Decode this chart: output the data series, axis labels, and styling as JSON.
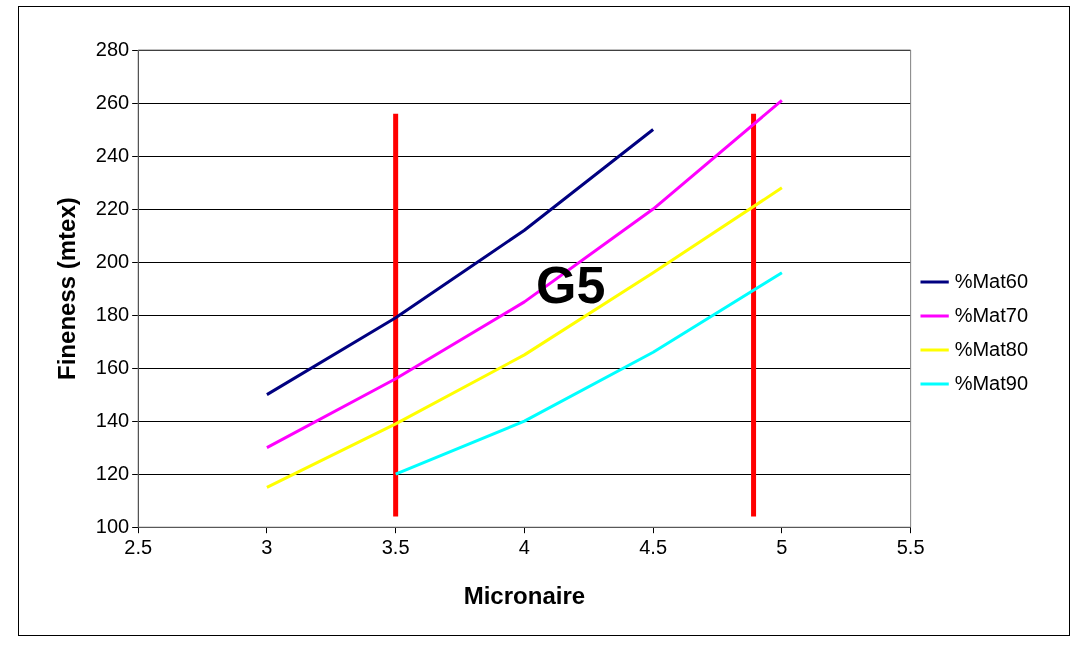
{
  "chart_data": {
    "type": "line",
    "xlabel": "Micronaire",
    "ylabel": "Fineness (mtex)",
    "xlim": [
      2.5,
      5.5
    ],
    "xticks": [
      2.5,
      3,
      3.5,
      4,
      4.5,
      5,
      5.5
    ],
    "ylim": [
      100,
      280
    ],
    "yticks": [
      100,
      120,
      140,
      160,
      180,
      200,
      220,
      240,
      260,
      280
    ],
    "grid": "y",
    "legend": "right",
    "marker": "none",
    "line_style": "solid",
    "annotations": [
      "G5"
    ],
    "series": [
      {
        "name": "%Mat60",
        "color": "#000080",
        "x": [
          3,
          3.5,
          4,
          4.5
        ],
        "values": [
          150,
          179,
          212,
          250
        ]
      },
      {
        "name": "%Mat70",
        "color": "#ff00ff",
        "x": [
          3,
          3.5,
          4,
          4.5,
          5
        ],
        "values": [
          130,
          156,
          185,
          220,
          261
        ]
      },
      {
        "name": "%Mat80",
        "color": "#ffff00",
        "x": [
          3,
          3.5,
          4,
          4.5,
          5
        ],
        "values": [
          115,
          139,
          165,
          196,
          228
        ]
      },
      {
        "name": "%Mat90",
        "color": "#00ffff",
        "x": [
          3.5,
          4,
          4.5,
          5
        ],
        "values": [
          120,
          140,
          166,
          196
        ]
      },
      {
        "color": "#ff0000",
        "x": [
          3.5,
          3.5
        ],
        "values": [
          104,
          256
        ]
      },
      {
        "color": "#ff0000",
        "x": [
          4.89,
          4.89
        ],
        "values": [
          104,
          256
        ]
      }
    ]
  }
}
